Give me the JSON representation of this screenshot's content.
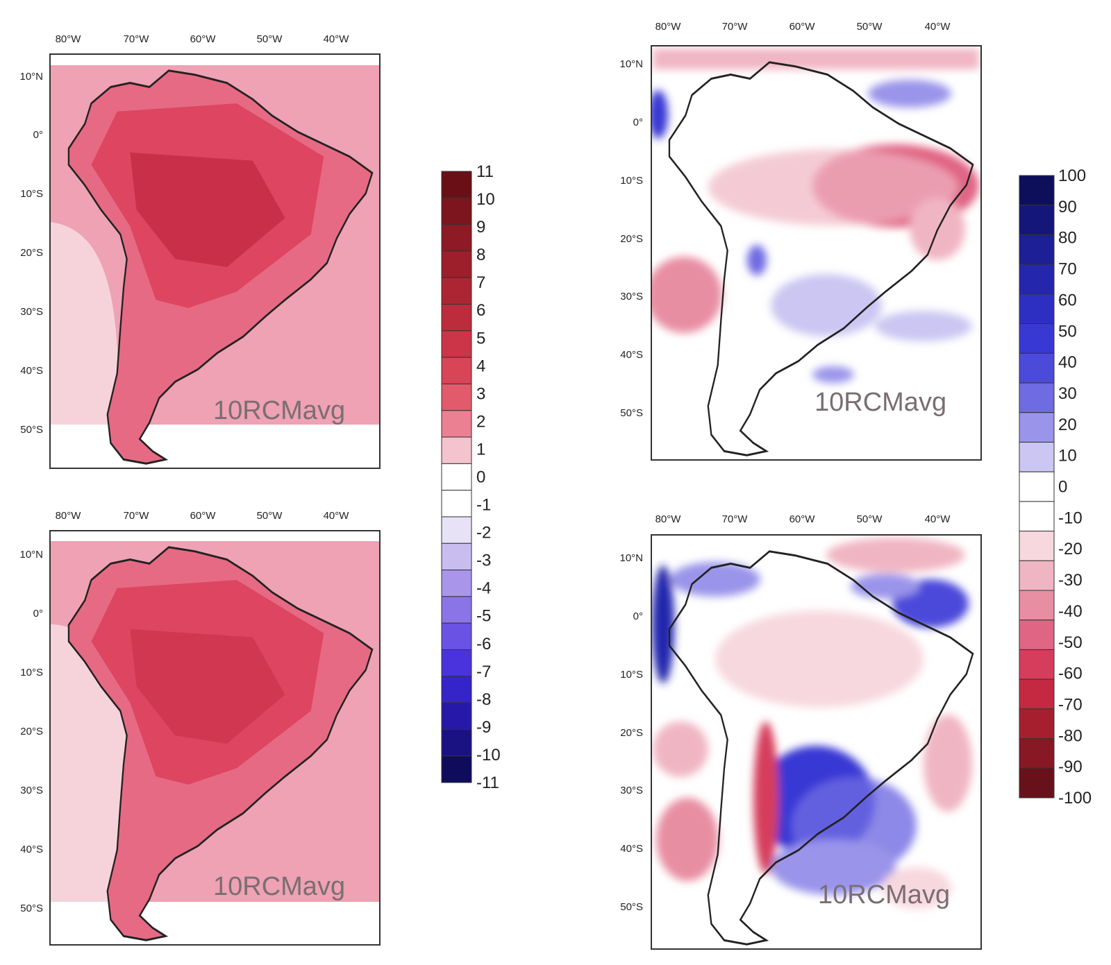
{
  "figure": {
    "lon_labels": [
      "80°W",
      "70°W",
      "60°W",
      "50°W",
      "40°W"
    ],
    "lat_labels": [
      "10°N",
      "0°",
      "10°S",
      "20°S",
      "30°S",
      "40°S",
      "50°S"
    ],
    "panels": [
      {
        "id": "top-left",
        "label": "10RCMavg",
        "variable": "temperature-change",
        "colorbar": "temperature"
      },
      {
        "id": "bottom-left",
        "label": "10RCMavg",
        "variable": "temperature-change",
        "colorbar": "temperature"
      },
      {
        "id": "top-right",
        "label": "10RCMavg",
        "variable": "precipitation-change",
        "colorbar": "precipitation"
      },
      {
        "id": "bottom-right",
        "label": "10RCMavg",
        "variable": "precipitation-change",
        "colorbar": "precipitation"
      }
    ]
  },
  "colorbars": {
    "temperature": {
      "labels": [
        "11",
        "10",
        "9",
        "8",
        "7",
        "6",
        "5",
        "4",
        "3",
        "2",
        "1",
        "0",
        "-1",
        "-2",
        "-3",
        "-4",
        "-5",
        "-6",
        "-7",
        "-8",
        "-9",
        "-10",
        "-11"
      ],
      "colors": [
        "#6b0f16",
        "#7c151d",
        "#8d1a24",
        "#9c1f2b",
        "#ac2533",
        "#bc2c3c",
        "#cb3547",
        "#d84556",
        "#e25b6c",
        "#ea8092",
        "#f4c3ce",
        "#ffffff",
        "#ffffff",
        "#e8e2f7",
        "#c9bdf0",
        "#a996ea",
        "#8b74e6",
        "#6a53e4",
        "#4a33dc",
        "#3524c9",
        "#2618a8",
        "#1a1283",
        "#0f0c5c"
      ]
    },
    "precipitation": {
      "labels": [
        "100",
        "90",
        "80",
        "70",
        "60",
        "50",
        "40",
        "30",
        "20",
        "10",
        "0",
        "-10",
        "-20",
        "-30",
        "-40",
        "-50",
        "-60",
        "-70",
        "-80",
        "-90",
        "-100"
      ],
      "colors": [
        "#0e0f5a",
        "#14167a",
        "#1c1f95",
        "#2427ad",
        "#2d2fc2",
        "#3838d4",
        "#4c4ad9",
        "#6f6be2",
        "#9a94ea",
        "#cbc6f2",
        "#ffffff",
        "#ffffff",
        "#f7d8df",
        "#f0b5c3",
        "#e88ea3",
        "#e06584",
        "#d63d5c",
        "#c42941",
        "#a61f2e",
        "#871824",
        "#68111b"
      ]
    }
  },
  "colors": {
    "light_pink": "#f6d3db",
    "pink": "#eea2b3",
    "medium": "#e66a83",
    "red": "#de4560",
    "dark_red": "#c62c45",
    "land_outline": "#222222"
  }
}
